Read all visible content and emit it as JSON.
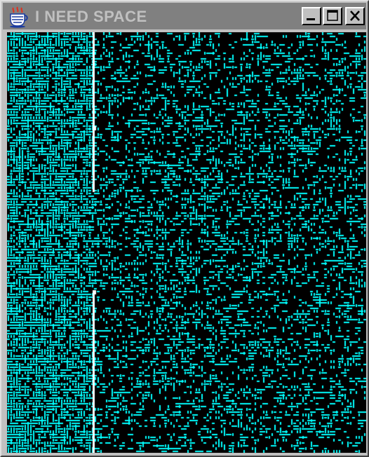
{
  "window": {
    "title": "I NEED SPACE",
    "icon": "java-coffee-cup-icon",
    "buttons": {
      "minimize": "minimize-icon",
      "maximize": "maximize-icon",
      "close": "close-icon"
    }
  },
  "colors": {
    "titlebar_inactive": "#808080",
    "title_text": "#c0c0c0",
    "chrome": "#c0c0c0",
    "background": "#000000",
    "particle": "#00ffff",
    "divider": "#ffffff"
  }
}
